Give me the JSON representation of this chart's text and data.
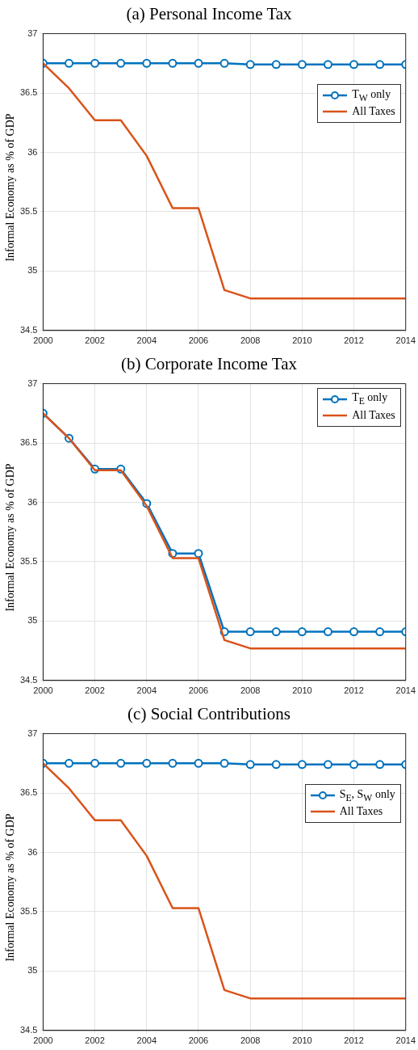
{
  "chart_data": [
    {
      "type": "line",
      "title": "(a) Personal Income Tax",
      "ylabel": "Informal Economy as % of GDP",
      "x": [
        2000,
        2001,
        2002,
        2003,
        2004,
        2005,
        2006,
        2007,
        2008,
        2009,
        2010,
        2011,
        2012,
        2013,
        2014
      ],
      "xlim": [
        2000,
        2014
      ],
      "xticks": [
        2000,
        2002,
        2004,
        2006,
        2008,
        2010,
        2012,
        2014
      ],
      "ylim": [
        34.5,
        37
      ],
      "yticks": [
        34.5,
        35,
        35.5,
        36,
        36.5,
        37
      ],
      "grid": true,
      "legend": "right",
      "line_style": "solid",
      "series": [
        {
          "name": "T$_{W}$ only",
          "color": "#0072bd",
          "marker": "circle",
          "values": [
            36.75,
            36.75,
            36.75,
            36.75,
            36.75,
            36.75,
            36.75,
            36.75,
            36.74,
            36.74,
            36.74,
            36.74,
            36.74,
            36.74,
            36.74
          ]
        },
        {
          "name": "All Taxes",
          "color": "#d95319",
          "marker": "none",
          "values": [
            36.75,
            36.54,
            36.27,
            36.27,
            35.97,
            35.53,
            35.53,
            34.84,
            34.77,
            34.77,
            34.77,
            34.77,
            34.77,
            34.77,
            34.77
          ]
        }
      ]
    },
    {
      "type": "line",
      "title": "(b) Corporate Income Tax",
      "ylabel": "Informal Economy as % of GDP",
      "x": [
        2000,
        2001,
        2002,
        2003,
        2004,
        2005,
        2006,
        2007,
        2008,
        2009,
        2010,
        2011,
        2012,
        2013,
        2014
      ],
      "xlim": [
        2000,
        2014
      ],
      "xticks": [
        2000,
        2002,
        2004,
        2006,
        2008,
        2010,
        2012,
        2014
      ],
      "ylim": [
        34.5,
        37
      ],
      "yticks": [
        34.5,
        35,
        35.5,
        36,
        36.5,
        37
      ],
      "grid": true,
      "legend": "top right",
      "line_style": "solid",
      "series": [
        {
          "name": "T$_{E}$ only",
          "color": "#0072bd",
          "marker": "circle",
          "values": [
            36.75,
            36.54,
            36.28,
            36.28,
            35.99,
            35.57,
            35.57,
            34.91,
            34.91,
            34.91,
            34.91,
            34.91,
            34.91,
            34.91,
            34.91
          ]
        },
        {
          "name": "All Taxes",
          "color": "#d95319",
          "marker": "none",
          "values": [
            36.75,
            36.54,
            36.27,
            36.27,
            35.97,
            35.53,
            35.53,
            34.84,
            34.77,
            34.77,
            34.77,
            34.77,
            34.77,
            34.77,
            34.77
          ]
        }
      ]
    },
    {
      "type": "line",
      "title": "(c) Social Contributions",
      "ylabel": "Informal Economy as % of GDP",
      "x": [
        2000,
        2001,
        2002,
        2003,
        2004,
        2005,
        2006,
        2007,
        2008,
        2009,
        2010,
        2011,
        2012,
        2013,
        2014
      ],
      "xlim": [
        2000,
        2014
      ],
      "xticks": [
        2000,
        2002,
        2004,
        2006,
        2008,
        2010,
        2012,
        2014
      ],
      "ylim": [
        34.5,
        37
      ],
      "yticks": [
        34.5,
        35,
        35.5,
        36,
        36.5,
        37
      ],
      "grid": true,
      "legend": "right",
      "line_style": "solid",
      "series": [
        {
          "name": "S$_{E}$, S$_{W}$ only",
          "color": "#0072bd",
          "marker": "circle",
          "values": [
            36.75,
            36.75,
            36.75,
            36.75,
            36.75,
            36.75,
            36.75,
            36.75,
            36.74,
            36.74,
            36.74,
            36.74,
            36.74,
            36.74,
            36.74
          ]
        },
        {
          "name": "All Taxes",
          "color": "#d95319",
          "marker": "none",
          "values": [
            36.75,
            36.54,
            36.27,
            36.27,
            35.97,
            35.53,
            35.53,
            34.84,
            34.77,
            34.77,
            34.77,
            34.77,
            34.77,
            34.77,
            34.77
          ]
        }
      ]
    }
  ]
}
